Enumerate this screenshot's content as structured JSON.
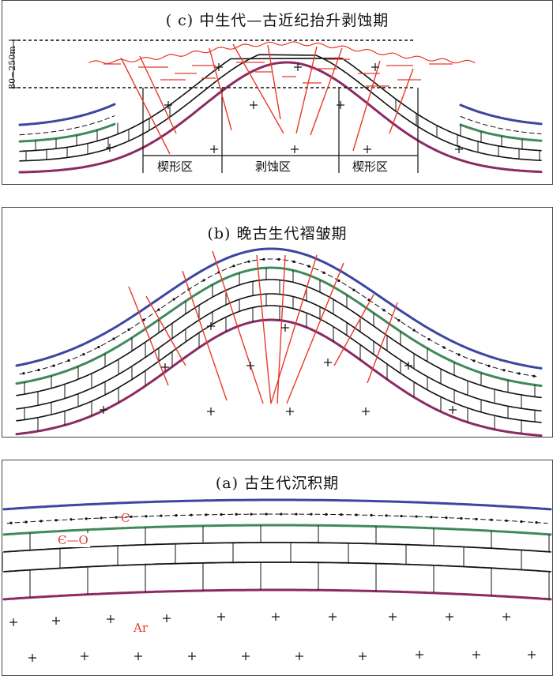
{
  "panels": {
    "c": {
      "title": "( c) 中生代—古近纪抬升剥蚀期",
      "thickness_label": "80~250m",
      "zones": [
        "楔形区",
        "剥蚀区",
        "楔形区"
      ]
    },
    "b": {
      "title": "(b) 晚古生代褶皱期"
    },
    "a": {
      "title": "(a) 古生代沉积期",
      "strata": [
        "Є",
        "Є—O",
        "Ar"
      ]
    }
  },
  "colors": {
    "top_layer": "#3c46a0",
    "green_layer": "#3f8a5a",
    "base_layer": "#8b2a63",
    "fault": "#e8392a",
    "line": "#111111"
  }
}
